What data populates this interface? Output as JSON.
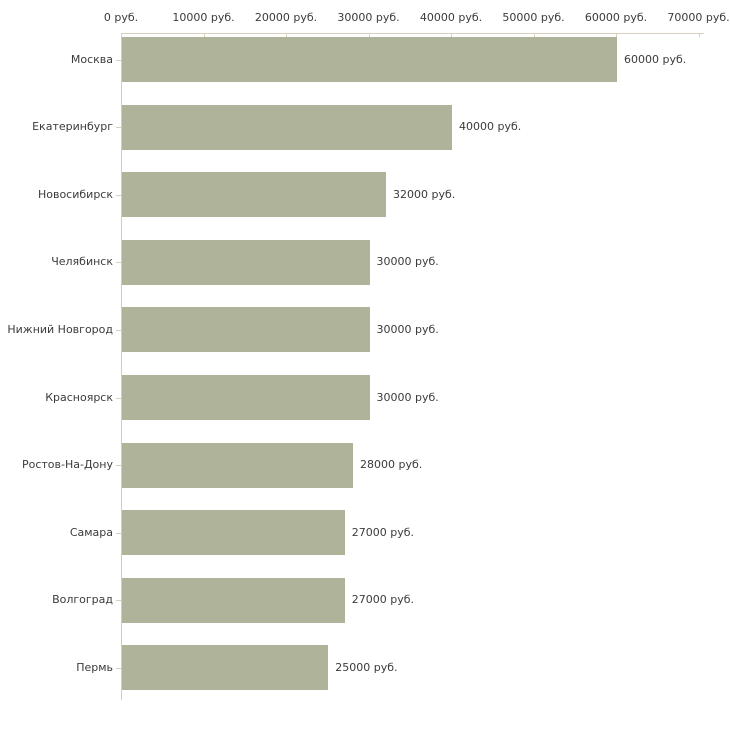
{
  "chart_data": {
    "type": "bar",
    "orientation": "horizontal",
    "title": "",
    "xlabel": "",
    "ylabel": "",
    "categories": [
      "Москва",
      "Екатеринбург",
      "Новосибирск",
      "Челябинск",
      "Нижний Новгород",
      "Красноярск",
      "Ростов-На-Дону",
      "Самара",
      "Волгоград",
      "Пермь"
    ],
    "values": [
      60000,
      40000,
      32000,
      30000,
      30000,
      30000,
      28000,
      27000,
      27000,
      25000
    ],
    "value_labels": [
      "60000 руб.",
      "40000 руб.",
      "32000 руб.",
      "30000 руб.",
      "30000 руб.",
      "30000 руб.",
      "28000 руб.",
      "27000 руб.",
      "27000 руб.",
      "25000 руб."
    ],
    "x_axis": {
      "position": "top",
      "min": 0,
      "max": 70000,
      "tick_values": [
        0,
        10000,
        20000,
        30000,
        40000,
        50000,
        60000,
        70000
      ],
      "tick_labels": [
        "0 руб.",
        "10000 руб.",
        "20000 руб.",
        "30000 руб.",
        "40000 руб.",
        "50000 руб.",
        "60000 руб.",
        "70000 руб."
      ]
    },
    "legend": null,
    "grid": false,
    "colors": {
      "bar_fill": "#aeb399",
      "top_axis_line": "#d6d1bc",
      "left_axis_line": "#cccccc",
      "tick_mark": "#d6d1bc",
      "text": "#3b3b3b",
      "background": "#ffffff"
    }
  }
}
